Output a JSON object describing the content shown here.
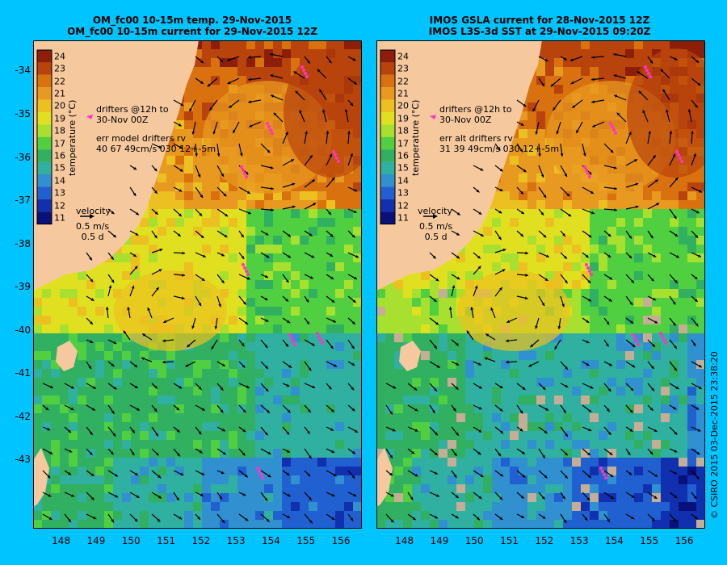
{
  "left_panel": {
    "title_line1": "OM_fc00 10-15m temp. 29-Nov-2015",
    "title_line2": "OM_fc00 10-15m current for 29-Nov-2015 12Z",
    "drifters_line1": "drifters @12h to",
    "drifters_line2": "30-Nov 00Z",
    "err_line1": "err model drifters rv",
    "err_line2": "40 67 49cm/s 030 12+-5m",
    "velocity_label": "velocity",
    "velocity_scale": "0.5 m/s",
    "velocity_time": "0.5 d"
  },
  "right_panel": {
    "title_line1": "IMOS GSLA current for 28-Nov-2015 12Z",
    "title_line2": "IMOS L3S-3d SST at 29-Nov-2015 09:20Z",
    "drifters_line1": "drifters @12h to",
    "drifters_line2": "30-Nov 00Z",
    "err_line1": "err alt drifters rv",
    "err_line2": "31 39 49cm/s 030 12+-5m",
    "velocity_label": "velocity",
    "velocity_scale": "0.5 m/s",
    "velocity_time": "0.5 d"
  },
  "colorbar": {
    "title": "temperature (°C)",
    "labels": [
      "24",
      "23",
      "22",
      "21",
      "20",
      "19",
      "18",
      "17",
      "16",
      "15",
      "14",
      "13",
      "12",
      "11"
    ],
    "colors": [
      "#8c1e0a",
      "#b8430c",
      "#d9720e",
      "#e89920",
      "#ecc020",
      "#e0e020",
      "#a8e030",
      "#50d040",
      "#30b060",
      "#30b0a0",
      "#3090d0",
      "#2060d0",
      "#1030b0",
      "#08107a"
    ]
  },
  "map_colors": {
    "land": "#f6c89e",
    "missing": "#c6ad95",
    "arrow": "#000000",
    "drifter": "#ff33cc"
  },
  "axes": {
    "y_labels": [
      "-34",
      "-35",
      "-36",
      "-37",
      "-38",
      "-39",
      "-40",
      "-41",
      "-42",
      "-43"
    ],
    "x_labels": [
      "148",
      "149",
      "150",
      "151",
      "152",
      "153",
      "154",
      "155",
      "156"
    ]
  },
  "credit": "© CSIRO 2015  03-Dec-2015 23:38:20"
}
